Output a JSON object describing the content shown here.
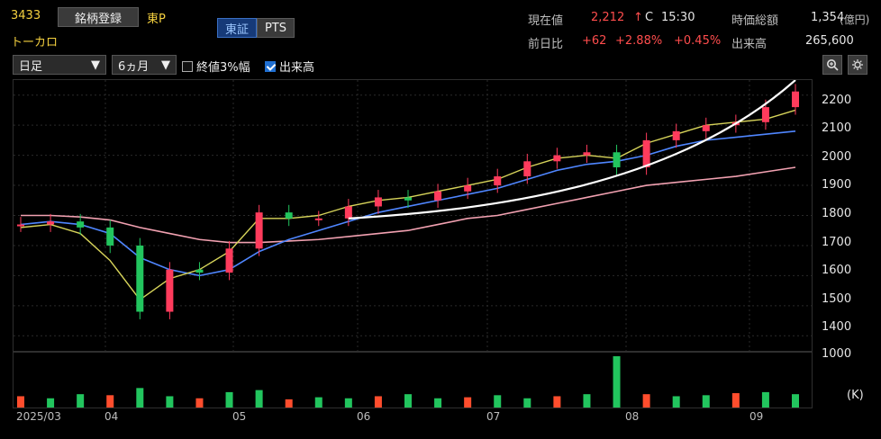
{
  "header": {
    "code": "3433",
    "register_label": "銘柄登録",
    "market": "東P",
    "name": "トーカロ",
    "tabs": [
      {
        "label": "東証",
        "active": true
      },
      {
        "label": "PTS",
        "active": false
      }
    ]
  },
  "quote": {
    "price_label": "現在値",
    "price": "2,212",
    "arrow": "↑",
    "flag": "C",
    "time": "15:30",
    "mcap_label": "時価総額",
    "mcap": "1,354",
    "mcap_unit": "(億円)",
    "change_label": "前日比",
    "change": "+62",
    "change_pct": "+2.88%",
    "extra_pct": "+0.45%",
    "volume_label": "出来高",
    "volume": "265,600"
  },
  "controls": {
    "period": "日足",
    "range": "6ヵ月",
    "opt1": "終値3%幅",
    "opt1_checked": false,
    "opt2": "出来高",
    "opt2_checked": true
  },
  "axis": {
    "y_ticks": [
      "2200",
      "2100",
      "2000",
      "1900",
      "1800",
      "1700",
      "1600",
      "1500",
      "1400"
    ],
    "vol_tick": "1000",
    "vol_unit": "(K)",
    "x_ticks": [
      "2025/03",
      "04",
      "05",
      "06",
      "07",
      "08",
      "09"
    ]
  },
  "chart_data": {
    "type": "candlestick",
    "ylim": [
      1350,
      2250
    ],
    "y_ticks": [
      1400,
      1500,
      1600,
      1700,
      1800,
      1900,
      2000,
      2100,
      2200
    ],
    "x_ticks": [
      "2025/03",
      "04",
      "05",
      "06",
      "07",
      "08",
      "09"
    ],
    "close_approx_weekly": [
      1770,
      1780,
      1760,
      1700,
      1480,
      1620,
      1610,
      1690,
      1810,
      1790,
      1790,
      1830,
      1860,
      1850,
      1880,
      1900,
      1930,
      1980,
      2000,
      2010,
      1960,
      2050,
      2080,
      2100,
      2110,
      2160,
      2212
    ],
    "ma_short_approx": [
      1760,
      1770,
      1740,
      1650,
      1520,
      1590,
      1620,
      1680,
      1790,
      1790,
      1800,
      1830,
      1850,
      1860,
      1880,
      1900,
      1920,
      1960,
      1990,
      2000,
      1990,
      2040,
      2070,
      2100,
      2110,
      2120,
      2150
    ],
    "ma_mid_approx": [
      1770,
      1780,
      1770,
      1740,
      1660,
      1620,
      1600,
      1620,
      1680,
      1720,
      1750,
      1780,
      1810,
      1830,
      1850,
      1870,
      1890,
      1920,
      1950,
      1970,
      1980,
      2000,
      2030,
      2050,
      2060,
      2070,
      2080
    ],
    "ma_long_approx": [
      1800,
      1800,
      1795,
      1785,
      1760,
      1740,
      1720,
      1710,
      1710,
      1715,
      1720,
      1730,
      1740,
      1750,
      1770,
      1790,
      1800,
      1820,
      1840,
      1860,
      1880,
      1900,
      1910,
      1920,
      1930,
      1945,
      1960
    ],
    "volume_series_k": [
      220,
      180,
      260,
      240,
      380,
      220,
      180,
      300,
      340,
      160,
      200,
      180,
      220,
      260,
      180,
      200,
      240,
      180,
      220,
      260,
      1000,
      260,
      220,
      240,
      280,
      300,
      260
    ],
    "vol_ylim": [
      0,
      1000
    ]
  }
}
